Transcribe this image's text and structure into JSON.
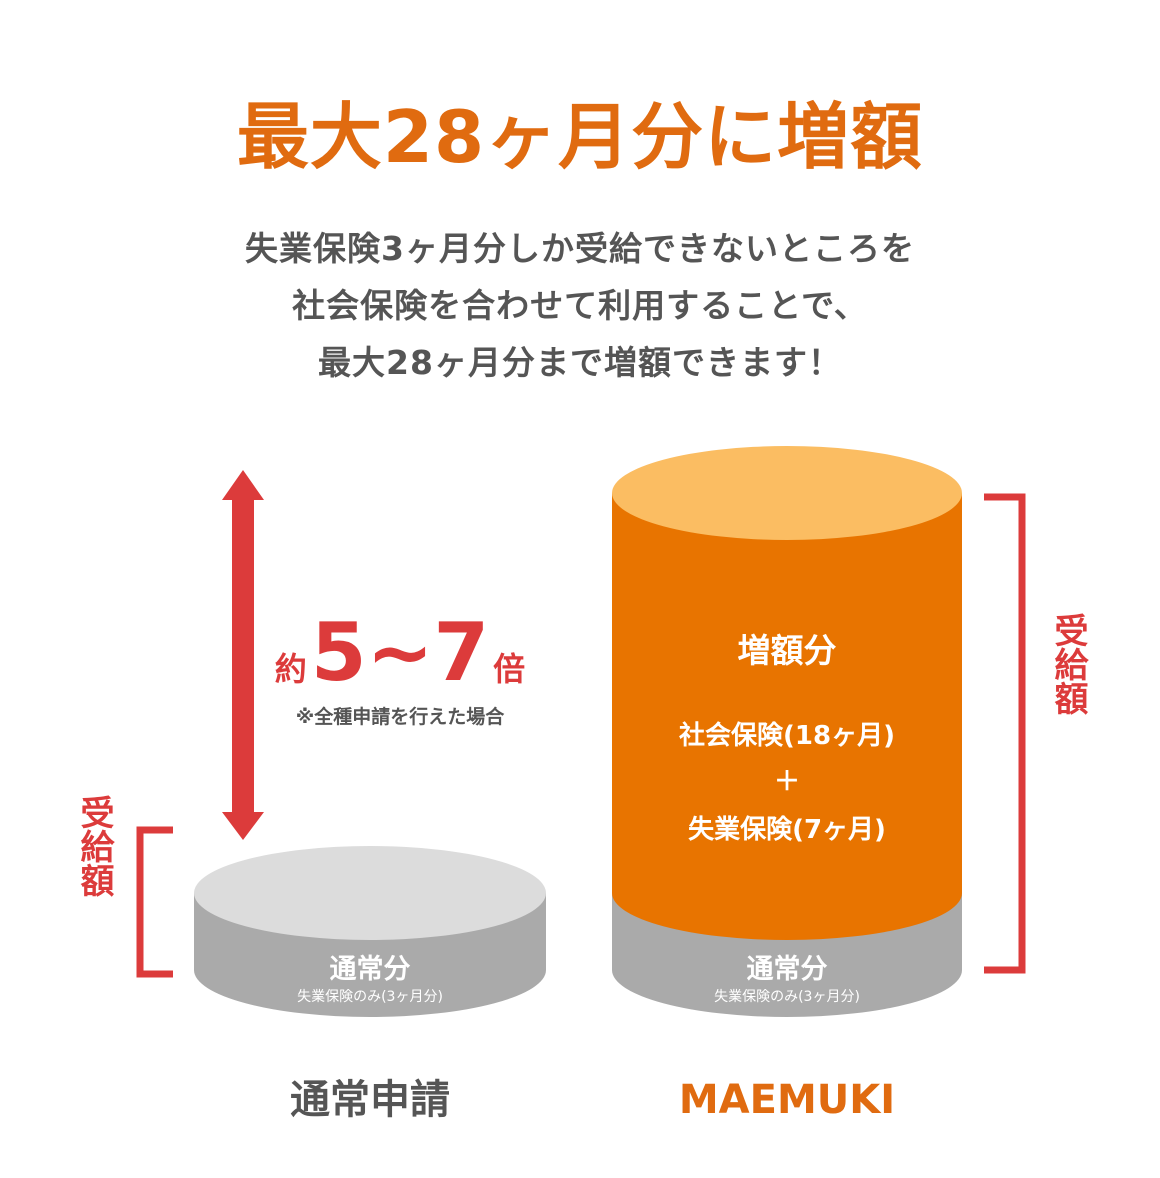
{
  "header": {
    "title": "最大28ヶ月分に増額",
    "description_lines": [
      "失業保険3ヶ月分しか受給できないところを",
      "社会保険を合わせて利用することで、",
      "最大28ヶ月分まで増額できます！"
    ]
  },
  "multiplier": {
    "prefix": "約",
    "value": "5~7",
    "suffix": "倍",
    "note": "※全種申請を行えた場合"
  },
  "left_column": {
    "bracket_label": "受給額",
    "base_label": "通常分",
    "base_sublabel": "失業保険のみ(3ヶ月分)",
    "caption": "通常申請"
  },
  "right_column": {
    "bracket_label": "受給額",
    "increase_label": "増額分",
    "increase_line1": "社会保険(18ヶ月)",
    "increase_plus": "＋",
    "increase_line2": "失業保険(7ヶ月)",
    "base_label": "通常分",
    "base_sublabel": "失業保険のみ(3ヶ月分)",
    "caption": "MAEMUKI"
  },
  "colors": {
    "accent_orange": "#e87400",
    "orange_top": "#fbbd62",
    "title_orange": "#e06b10",
    "red": "#dc3b3b",
    "gray_top": "#dcdcdc",
    "gray_body": "#aaaaaa",
    "text_gray": "#555555"
  }
}
